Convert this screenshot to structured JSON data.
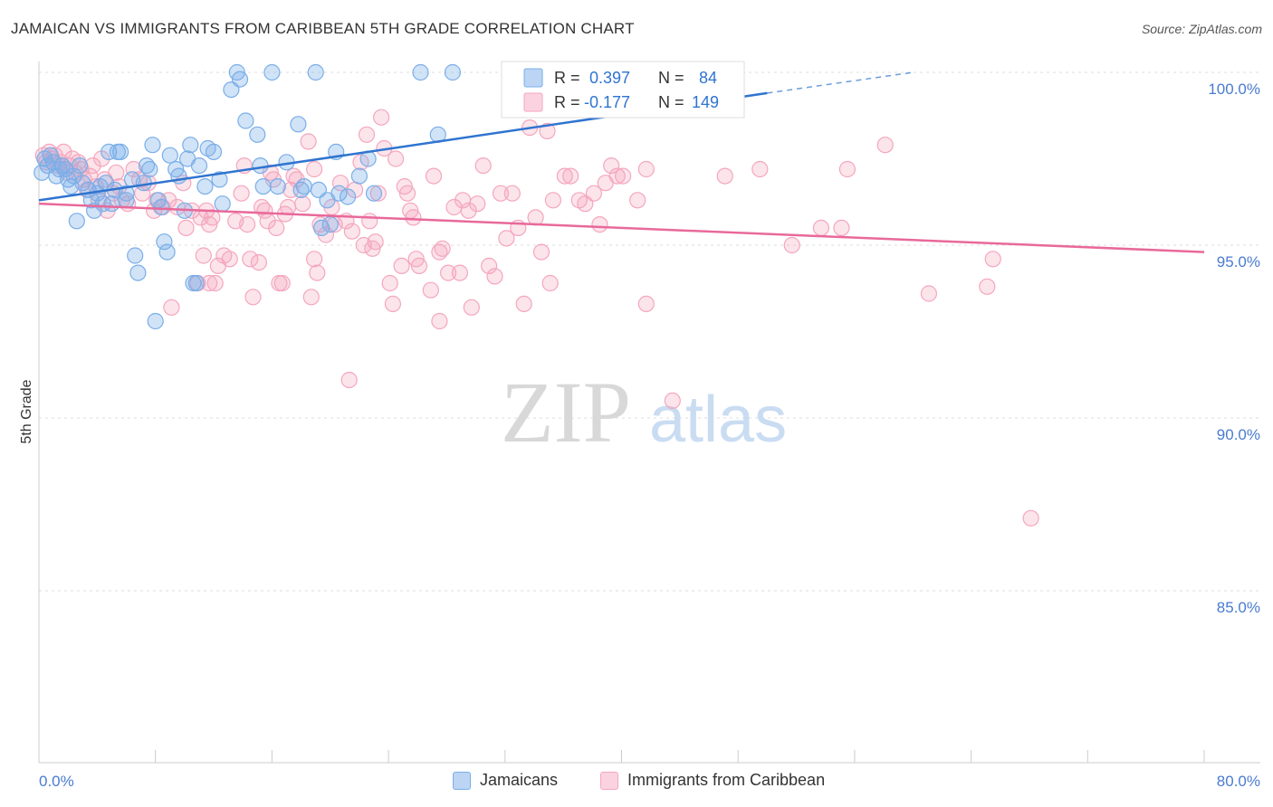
{
  "title": "JAMAICAN VS IMMIGRANTS FROM CARIBBEAN 5TH GRADE CORRELATION CHART",
  "source": "Source: ZipAtlas.com",
  "watermark": {
    "zip": "ZIP",
    "atlas": "atlas"
  },
  "chart_data": {
    "type": "scatter",
    "ylabel": "5th Grade",
    "xlim": [
      0,
      80
    ],
    "ylim": [
      80.5,
      100.7
    ],
    "y_ticks": [
      {
        "value": 100,
        "label": "100.0%"
      },
      {
        "value": 95,
        "label": "95.0%"
      },
      {
        "value": 90,
        "label": "90.0%"
      },
      {
        "value": 85,
        "label": "85.0%"
      }
    ],
    "x_tick_labels": {
      "left": "0.0%",
      "right": "80.0%"
    },
    "legend": [
      {
        "r_label": "R =",
        "r_value": "0.397",
        "n_label": "N =",
        "n_value": "84"
      },
      {
        "r_label": "R =",
        "r_value": "-0.177",
        "n_label": "N =",
        "n_value": "149"
      }
    ],
    "series": [
      {
        "name": "Jamaicans",
        "color": "#7aaee8",
        "line_color": "#2f74d0",
        "trend": {
          "x0": 0,
          "y0": 96.3,
          "x1": 50,
          "y1": 99.4,
          "dash_to_x": 60,
          "dash_to_y": 100.0
        },
        "points": [
          [
            0.2,
            97.1
          ],
          [
            0.4,
            97.5
          ],
          [
            0.6,
            97.3
          ],
          [
            0.8,
            97.6
          ],
          [
            1.0,
            97.4
          ],
          [
            1.2,
            97.0
          ],
          [
            1.4,
            97.2
          ],
          [
            1.6,
            97.3
          ],
          [
            1.8,
            97.2
          ],
          [
            2.0,
            96.9
          ],
          [
            2.2,
            96.7
          ],
          [
            2.4,
            97.0
          ],
          [
            2.6,
            95.7
          ],
          [
            2.8,
            97.3
          ],
          [
            3.0,
            96.8
          ],
          [
            3.4,
            96.6
          ],
          [
            3.6,
            96.3
          ],
          [
            3.8,
            96.0
          ],
          [
            4.0,
            96.5
          ],
          [
            4.2,
            96.7
          ],
          [
            4.4,
            96.2
          ],
          [
            4.6,
            96.8
          ],
          [
            4.8,
            97.7
          ],
          [
            5.2,
            96.6
          ],
          [
            5.4,
            97.7
          ],
          [
            5.6,
            97.7
          ],
          [
            6.0,
            96.5
          ],
          [
            6.4,
            96.9
          ],
          [
            6.6,
            94.7
          ],
          [
            6.8,
            94.2
          ],
          [
            7.2,
            96.8
          ],
          [
            7.4,
            97.3
          ],
          [
            7.6,
            97.2
          ],
          [
            7.8,
            97.9
          ],
          [
            8.2,
            96.3
          ],
          [
            8.4,
            96.1
          ],
          [
            8.6,
            95.1
          ],
          [
            8.8,
            94.8
          ],
          [
            9.0,
            97.6
          ],
          [
            9.4,
            97.2
          ],
          [
            9.6,
            97.0
          ],
          [
            10.0,
            96.0
          ],
          [
            10.2,
            97.5
          ],
          [
            10.4,
            97.9
          ],
          [
            10.6,
            93.9
          ],
          [
            11.0,
            97.3
          ],
          [
            11.4,
            96.7
          ],
          [
            11.6,
            97.8
          ],
          [
            12.0,
            97.7
          ],
          [
            12.4,
            96.9
          ],
          [
            12.6,
            96.2
          ],
          [
            13.2,
            99.5
          ],
          [
            13.6,
            100.0
          ],
          [
            13.8,
            99.8
          ],
          [
            14.2,
            98.6
          ],
          [
            15.0,
            98.2
          ],
          [
            15.2,
            97.3
          ],
          [
            15.4,
            96.7
          ],
          [
            16.0,
            100.0
          ],
          [
            16.4,
            96.7
          ],
          [
            17.0,
            97.4
          ],
          [
            17.8,
            98.5
          ],
          [
            18.0,
            96.6
          ],
          [
            18.2,
            96.7
          ],
          [
            19.0,
            100.0
          ],
          [
            19.2,
            96.6
          ],
          [
            19.4,
            95.5
          ],
          [
            19.8,
            96.3
          ],
          [
            20.0,
            95.6
          ],
          [
            20.4,
            97.7
          ],
          [
            21.2,
            96.4
          ],
          [
            22.0,
            97.0
          ],
          [
            22.6,
            97.5
          ],
          [
            23.0,
            96.5
          ],
          [
            26.2,
            100.0
          ],
          [
            27.4,
            98.2
          ],
          [
            28.4,
            100.0
          ],
          [
            8.0,
            92.8
          ],
          [
            6.0,
            96.3
          ],
          [
            5.0,
            96.2
          ],
          [
            10.8,
            93.9
          ],
          [
            34.4,
            99.6
          ],
          [
            45.2,
            100.0
          ],
          [
            20.6,
            96.5
          ]
        ]
      },
      {
        "name": "Immigrants from Caribbean",
        "color": "#f4a6be",
        "line_color": "#e8699a",
        "trend": {
          "x0": 0,
          "y0": 96.2,
          "x1": 80,
          "y1": 94.8
        },
        "points": [
          [
            0.3,
            97.6
          ],
          [
            0.5,
            97.4
          ],
          [
            0.7,
            97.7
          ],
          [
            0.9,
            97.5
          ],
          [
            1.1,
            97.6
          ],
          [
            1.3,
            97.3
          ],
          [
            1.5,
            97.4
          ],
          [
            1.7,
            97.7
          ],
          [
            1.9,
            97.1
          ],
          [
            2.1,
            97.3
          ],
          [
            2.3,
            97.5
          ],
          [
            2.5,
            97.1
          ],
          [
            2.7,
            97.4
          ],
          [
            2.9,
            97.2
          ],
          [
            3.1,
            96.9
          ],
          [
            3.3,
            96.6
          ],
          [
            3.5,
            97.0
          ],
          [
            3.7,
            97.3
          ],
          [
            3.9,
            96.7
          ],
          [
            4.1,
            96.3
          ],
          [
            4.3,
            97.5
          ],
          [
            4.5,
            96.9
          ],
          [
            4.7,
            96.0
          ],
          [
            5.1,
            96.5
          ],
          [
            5.3,
            97.1
          ],
          [
            5.5,
            96.7
          ],
          [
            5.7,
            96.3
          ],
          [
            6.1,
            96.2
          ],
          [
            6.5,
            97.2
          ],
          [
            6.9,
            96.9
          ],
          [
            7.1,
            96.5
          ],
          [
            7.5,
            96.8
          ],
          [
            7.9,
            96.0
          ],
          [
            8.1,
            96.3
          ],
          [
            8.5,
            96.1
          ],
          [
            8.9,
            96.3
          ],
          [
            9.1,
            93.2
          ],
          [
            9.5,
            96.1
          ],
          [
            9.9,
            96.8
          ],
          [
            10.1,
            95.5
          ],
          [
            10.5,
            96.0
          ],
          [
            10.9,
            93.9
          ],
          [
            11.1,
            95.8
          ],
          [
            11.3,
            94.7
          ],
          [
            11.5,
            96.0
          ],
          [
            11.7,
            95.6
          ],
          [
            11.9,
            95.8
          ],
          [
            12.1,
            93.9
          ],
          [
            12.3,
            94.4
          ],
          [
            12.7,
            94.7
          ],
          [
            13.1,
            94.6
          ],
          [
            13.5,
            95.7
          ],
          [
            13.9,
            96.5
          ],
          [
            14.1,
            97.3
          ],
          [
            14.3,
            95.6
          ],
          [
            14.5,
            94.6
          ],
          [
            14.7,
            93.5
          ],
          [
            15.1,
            94.5
          ],
          [
            15.3,
            96.1
          ],
          [
            15.5,
            96.0
          ],
          [
            15.7,
            95.7
          ],
          [
            15.9,
            97.1
          ],
          [
            16.1,
            96.9
          ],
          [
            16.3,
            95.5
          ],
          [
            16.5,
            93.9
          ],
          [
            16.7,
            93.9
          ],
          [
            16.9,
            95.9
          ],
          [
            17.1,
            96.1
          ],
          [
            17.3,
            96.6
          ],
          [
            17.5,
            97.0
          ],
          [
            17.7,
            96.9
          ],
          [
            18.1,
            96.2
          ],
          [
            18.5,
            98.0
          ],
          [
            18.7,
            93.5
          ],
          [
            18.9,
            94.6
          ],
          [
            19.1,
            94.2
          ],
          [
            19.3,
            95.6
          ],
          [
            19.7,
            95.3
          ],
          [
            20.1,
            96.1
          ],
          [
            20.3,
            95.6
          ],
          [
            21.1,
            95.7
          ],
          [
            21.3,
            91.1
          ],
          [
            21.5,
            95.4
          ],
          [
            21.7,
            96.6
          ],
          [
            22.1,
            97.4
          ],
          [
            22.3,
            95.0
          ],
          [
            22.5,
            98.2
          ],
          [
            22.7,
            95.7
          ],
          [
            22.9,
            94.9
          ],
          [
            23.1,
            95.1
          ],
          [
            23.3,
            96.5
          ],
          [
            23.5,
            98.7
          ],
          [
            23.7,
            97.8
          ],
          [
            24.1,
            93.9
          ],
          [
            24.3,
            93.3
          ],
          [
            24.5,
            97.5
          ],
          [
            24.9,
            94.4
          ],
          [
            25.1,
            96.7
          ],
          [
            25.3,
            96.5
          ],
          [
            25.5,
            96.0
          ],
          [
            25.7,
            95.8
          ],
          [
            25.9,
            94.6
          ],
          [
            26.1,
            94.4
          ],
          [
            26.9,
            93.7
          ],
          [
            27.1,
            97.0
          ],
          [
            27.5,
            94.8
          ],
          [
            27.7,
            94.9
          ],
          [
            28.1,
            94.2
          ],
          [
            28.5,
            96.1
          ],
          [
            28.9,
            94.2
          ],
          [
            29.1,
            96.3
          ],
          [
            29.5,
            96.0
          ],
          [
            29.7,
            93.2
          ],
          [
            30.1,
            96.2
          ],
          [
            30.5,
            97.3
          ],
          [
            30.9,
            94.4
          ],
          [
            31.3,
            94.1
          ],
          [
            31.7,
            96.5
          ],
          [
            32.1,
            95.2
          ],
          [
            32.5,
            96.5
          ],
          [
            32.9,
            95.5
          ],
          [
            33.3,
            93.3
          ],
          [
            33.7,
            98.4
          ],
          [
            34.1,
            95.8
          ],
          [
            34.5,
            94.8
          ],
          [
            34.9,
            98.3
          ],
          [
            35.3,
            96.3
          ],
          [
            36.1,
            97.0
          ],
          [
            36.5,
            97.0
          ],
          [
            37.1,
            96.3
          ],
          [
            37.5,
            96.2
          ],
          [
            38.1,
            96.5
          ],
          [
            38.5,
            95.6
          ],
          [
            38.9,
            96.8
          ],
          [
            39.3,
            97.3
          ],
          [
            39.7,
            97.0
          ],
          [
            40.1,
            97.0
          ],
          [
            41.1,
            96.3
          ],
          [
            41.7,
            97.2
          ],
          [
            44.7,
            100.0
          ],
          [
            46.7,
            100.0
          ],
          [
            47.1,
            97.0
          ],
          [
            49.5,
            97.2
          ],
          [
            51.7,
            95.0
          ],
          [
            53.7,
            95.5
          ],
          [
            55.5,
            97.2
          ],
          [
            58.1,
            97.9
          ],
          [
            61.1,
            93.6
          ],
          [
            65.1,
            93.8
          ],
          [
            65.5,
            94.6
          ],
          [
            68.1,
            87.1
          ],
          [
            41.7,
            93.3
          ],
          [
            43.5,
            90.5
          ],
          [
            55.1,
            95.5
          ],
          [
            35.1,
            93.9
          ],
          [
            18.9,
            97.2
          ],
          [
            11.7,
            93.9
          ],
          [
            20.7,
            96.8
          ],
          [
            27.5,
            92.8
          ]
        ]
      }
    ]
  },
  "bottom_legend": [
    {
      "label": "Jamaicans",
      "fill": "#bcd5f5",
      "stroke": "#7aaee8"
    },
    {
      "label": "Immigrants from Caribbean",
      "fill": "#fbd3e0",
      "stroke": "#f4a6be"
    }
  ]
}
